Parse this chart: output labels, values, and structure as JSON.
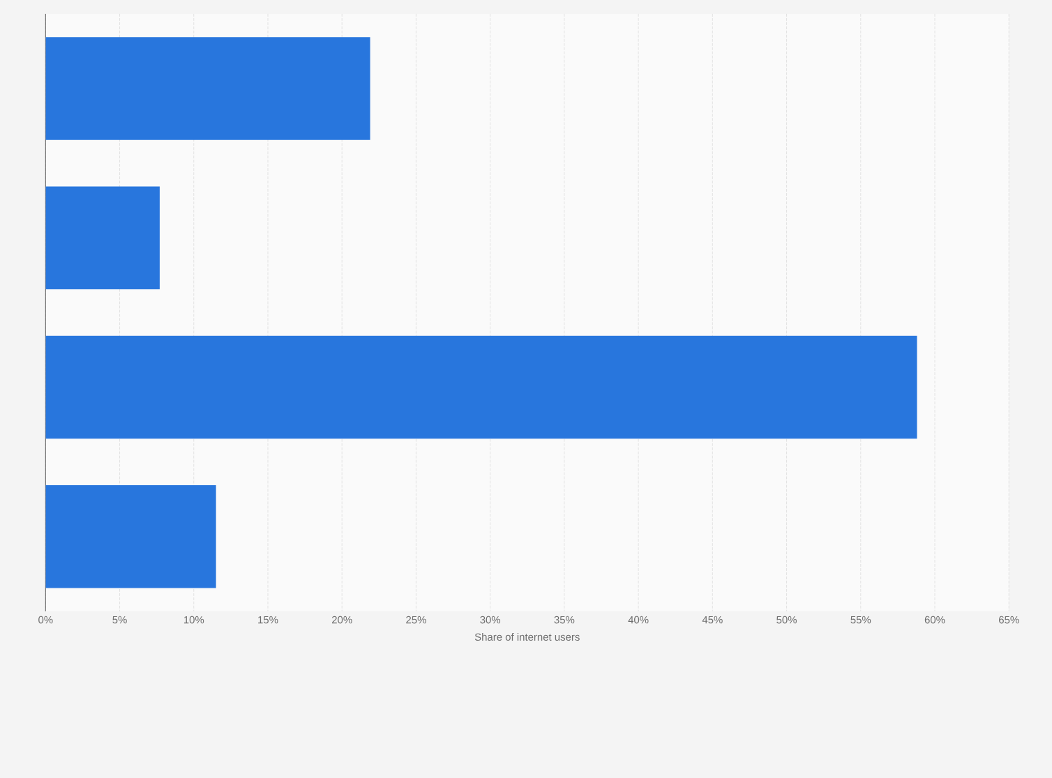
{
  "chart_data": {
    "type": "bar",
    "orientation": "horizontal",
    "xlabel": "Share of internet users",
    "categories": [
      null,
      null,
      null,
      null
    ],
    "values": [
      21.9,
      7.7,
      58.8,
      11.5
    ],
    "color": "#2876dd",
    "xlim": [
      0,
      65
    ],
    "xticks": [
      {
        "value": 0,
        "label": "0%"
      },
      {
        "value": 5,
        "label": "5%"
      },
      {
        "value": 10,
        "label": "10%"
      },
      {
        "value": 15,
        "label": "15%"
      },
      {
        "value": 20,
        "label": "20%"
      },
      {
        "value": 25,
        "label": "25%"
      },
      {
        "value": 30,
        "label": "30%"
      },
      {
        "value": 35,
        "label": "35%"
      },
      {
        "value": 40,
        "label": "40%"
      },
      {
        "value": 45,
        "label": "45%"
      },
      {
        "value": 50,
        "label": "50%"
      },
      {
        "value": 55,
        "label": "55%"
      },
      {
        "value": 60,
        "label": "60%"
      },
      {
        "value": 65,
        "label": "65%"
      }
    ],
    "grid": "x"
  }
}
